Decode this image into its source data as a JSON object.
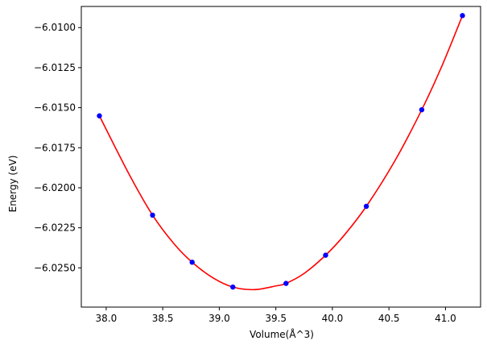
{
  "chart_data": {
    "type": "scatter",
    "title": "",
    "xlabel": "Volume(Å^3)",
    "ylabel": "Energy (eV)",
    "xlim": [
      37.78,
      41.31
    ],
    "ylim": [
      -6.02745,
      -6.00868
    ],
    "xticks": [
      38.0,
      38.5,
      39.0,
      39.5,
      40.0,
      40.5,
      41.0
    ],
    "xtick_labels": [
      "38.0",
      "38.5",
      "39.0",
      "39.5",
      "40.0",
      "40.5",
      "41.0"
    ],
    "yticks": [
      -6.01,
      -6.0125,
      -6.015,
      -6.0175,
      -6.02,
      -6.0225,
      -6.025
    ],
    "ytick_labels": [
      "−6.0100",
      "−6.0125",
      "−6.0150",
      "−6.0175",
      "−6.0200",
      "−6.0225",
      "−6.0250"
    ],
    "grid": false,
    "series": [
      {
        "kind": "points",
        "color": "#0000ff",
        "x": [
          37.94,
          38.41,
          38.76,
          39.12,
          39.59,
          39.94,
          40.3,
          40.79,
          41.15
        ],
        "y": [
          -6.01551,
          -6.02171,
          -6.02465,
          -6.0262,
          -6.02597,
          -6.02421,
          -6.02116,
          -6.01513,
          -6.00925
        ]
      },
      {
        "kind": "fit-curve",
        "color": "#ff0000",
        "x": [
          37.94,
          38.2,
          38.41,
          38.6,
          38.76,
          38.95,
          39.12,
          39.31,
          39.5,
          39.59,
          39.75,
          39.94,
          40.1,
          40.3,
          40.55,
          40.79,
          40.97,
          41.15
        ],
        "y": [
          -6.01551,
          -6.01912,
          -6.02171,
          -6.0235,
          -6.02465,
          -6.02565,
          -6.0262,
          -6.02636,
          -6.02613,
          -6.02597,
          -6.02535,
          -6.02421,
          -6.023,
          -6.02116,
          -6.01835,
          -6.01513,
          -6.01237,
          -6.00925
        ]
      }
    ]
  }
}
